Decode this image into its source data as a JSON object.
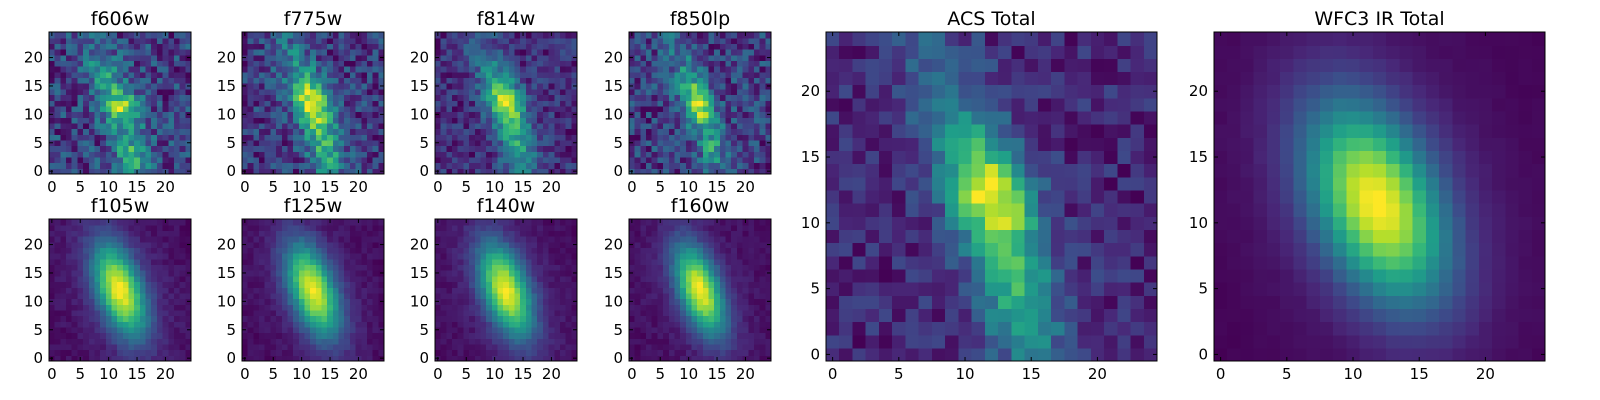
{
  "chart_data": [
    {
      "id": "f606w",
      "type": "heatmap",
      "title": "f606w",
      "grid": 25,
      "noise": 0.3,
      "shape": "acs606",
      "xticks": [
        0,
        5,
        10,
        15,
        20
      ],
      "yticks": [
        0,
        5,
        10,
        15,
        20
      ],
      "xlim": [
        0,
        24
      ],
      "ylim": [
        0,
        24
      ],
      "colormap": "viridis",
      "seed": 11
    },
    {
      "id": "f775w",
      "type": "heatmap",
      "title": "f775w",
      "grid": 25,
      "noise": 0.2,
      "shape": "acs",
      "xticks": [
        0,
        5,
        10,
        15,
        20
      ],
      "yticks": [
        0,
        5,
        10,
        15,
        20
      ],
      "xlim": [
        0,
        24
      ],
      "ylim": [
        0,
        24
      ],
      "colormap": "viridis",
      "seed": 23
    },
    {
      "id": "f814w",
      "type": "heatmap",
      "title": "f814w",
      "grid": 25,
      "noise": 0.16,
      "shape": "acs",
      "xticks": [
        0,
        5,
        10,
        15,
        20
      ],
      "yticks": [
        0,
        5,
        10,
        15,
        20
      ],
      "xlim": [
        0,
        24
      ],
      "ylim": [
        0,
        24
      ],
      "colormap": "viridis",
      "seed": 37
    },
    {
      "id": "f850lp",
      "type": "heatmap",
      "title": "f850lp",
      "grid": 25,
      "noise": 0.24,
      "shape": "acs850",
      "xticks": [
        0,
        5,
        10,
        15,
        20
      ],
      "yticks": [
        0,
        5,
        10,
        15,
        20
      ],
      "xlim": [
        0,
        24
      ],
      "ylim": [
        0,
        24
      ],
      "colormap": "viridis",
      "seed": 41
    },
    {
      "id": "f105w",
      "type": "heatmap",
      "title": "f105w",
      "grid": 25,
      "noise": 0.04,
      "shape": "ir",
      "xticks": [
        0,
        5,
        10,
        15,
        20
      ],
      "yticks": [
        0,
        5,
        10,
        15,
        20
      ],
      "xlim": [
        0,
        24
      ],
      "ylim": [
        0,
        24
      ],
      "colormap": "viridis",
      "seed": 53
    },
    {
      "id": "f125w",
      "type": "heatmap",
      "title": "f125w",
      "grid": 25,
      "noise": 0.04,
      "shape": "ir",
      "xticks": [
        0,
        5,
        10,
        15,
        20
      ],
      "yticks": [
        0,
        5,
        10,
        15,
        20
      ],
      "xlim": [
        0,
        24
      ],
      "ylim": [
        0,
        24
      ],
      "colormap": "viridis",
      "seed": 61
    },
    {
      "id": "f140w",
      "type": "heatmap",
      "title": "f140w",
      "grid": 25,
      "noise": 0.04,
      "shape": "ir",
      "xticks": [
        0,
        5,
        10,
        15,
        20
      ],
      "yticks": [
        0,
        5,
        10,
        15,
        20
      ],
      "xlim": [
        0,
        24
      ],
      "ylim": [
        0,
        24
      ],
      "colormap": "viridis",
      "seed": 71
    },
    {
      "id": "f160w",
      "type": "heatmap",
      "title": "f160w",
      "grid": 25,
      "noise": 0.04,
      "shape": "ir160",
      "xticks": [
        0,
        5,
        10,
        15,
        20
      ],
      "yticks": [
        0,
        5,
        10,
        15,
        20
      ],
      "xlim": [
        0,
        24
      ],
      "ylim": [
        0,
        24
      ],
      "colormap": "viridis",
      "seed": 83
    },
    {
      "id": "acs-total",
      "type": "heatmap",
      "title": "ACS Total",
      "grid": 25,
      "noise": 0.12,
      "shape": "acs",
      "xticks": [
        0,
        5,
        10,
        15,
        20
      ],
      "yticks": [
        0,
        5,
        10,
        15,
        20
      ],
      "xlim": [
        0,
        24
      ],
      "ylim": [
        0,
        24
      ],
      "colormap": "viridis",
      "seed": 97
    },
    {
      "id": "wfc3-ir-total",
      "type": "heatmap",
      "title": "WFC3 IR Total",
      "grid": 25,
      "noise": 0.01,
      "shape": "irtotal",
      "xticks": [
        0,
        5,
        10,
        15,
        20
      ],
      "yticks": [
        0,
        5,
        10,
        15,
        20
      ],
      "xlim": [
        0,
        24
      ],
      "ylim": [
        0,
        24
      ],
      "colormap": "viridis",
      "seed": 101
    }
  ],
  "colors": {
    "viridis": [
      "#440154",
      "#482878",
      "#3e4989",
      "#31688e",
      "#26828e",
      "#1f9e89",
      "#35b779",
      "#6ece58",
      "#b5de2b",
      "#fde725"
    ],
    "axis": "#000000",
    "background": "#ffffff"
  }
}
